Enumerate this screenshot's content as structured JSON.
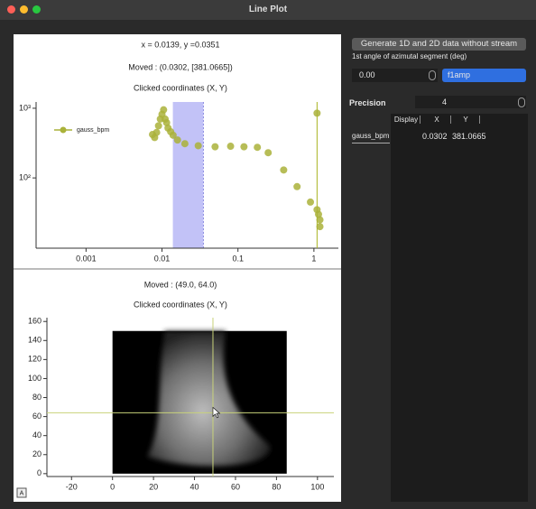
{
  "window": {
    "title": "Line Plot"
  },
  "top_plot": {
    "type": "scatter",
    "status": "x = 0.0139, y =0.0351",
    "moved": "Moved : (0.0302, [381.0665])",
    "clicked": "Clicked coordinates (X, Y)",
    "log_x": true,
    "log_y": true,
    "xlim": [
      0.00022,
      2.1
    ],
    "ylim": [
      9.8,
      1230
    ],
    "xticks": [
      0.001,
      0.01,
      0.1,
      1
    ],
    "yticks": [
      {
        "value": 100,
        "label": "10²"
      },
      {
        "value": 1000,
        "label": "10³"
      }
    ],
    "region": [
      0.0139,
      0.0351
    ],
    "region_color": "#b3b3f5",
    "vline": 1.1,
    "vline_color": "#a9b320",
    "series": [
      {
        "name": "gauss_bpm",
        "color": "#aab23a",
        "x": [
          0.0075,
          0.008,
          0.0085,
          0.009,
          0.0095,
          0.01,
          0.0105,
          0.011,
          0.0115,
          0.012,
          0.013,
          0.014,
          0.016,
          0.02,
          0.03,
          0.05,
          0.08,
          0.12,
          0.18,
          0.25,
          0.4,
          0.6,
          0.9,
          1.1,
          1.15,
          1.2,
          1.2,
          1.1
        ],
        "values": [
          420,
          380,
          450,
          560,
          700,
          820,
          950,
          700,
          620,
          520,
          460,
          410,
          350,
          310,
          290,
          280,
          285,
          280,
          275,
          230,
          130,
          75,
          45,
          35,
          30,
          25,
          20,
          850
        ]
      }
    ]
  },
  "bottom_plot": {
    "type": "image",
    "moved": "Moved : (49.0, 64.0)",
    "clicked": "Clicked coordinates (X, Y)",
    "xlim": [
      -32,
      108
    ],
    "ylim": [
      -3,
      164
    ],
    "xticks": [
      -20,
      0,
      20,
      40,
      60,
      80,
      100
    ],
    "yticks": [
      0,
      20,
      40,
      60,
      80,
      100,
      120,
      140,
      160
    ],
    "image_x": [
      0,
      85
    ],
    "image_y": [
      0,
      150
    ],
    "crosshair": [
      49,
      64
    ],
    "crosshair_color": "#c8d27a",
    "corner_button": "A"
  },
  "controls": {
    "generate_button": "Generate 1D and 2D data without stream",
    "angle_label": "1st angle of azimutal segment (deg)",
    "angle_value": "0.00",
    "mode_select": "f1amp",
    "precision_label": "Precision",
    "precision_value": "4",
    "table": {
      "headers": [
        "Display",
        "X",
        "Y"
      ],
      "rows": [
        [
          "gauss_bpm",
          "0.0302",
          "381.0665"
        ]
      ]
    }
  }
}
